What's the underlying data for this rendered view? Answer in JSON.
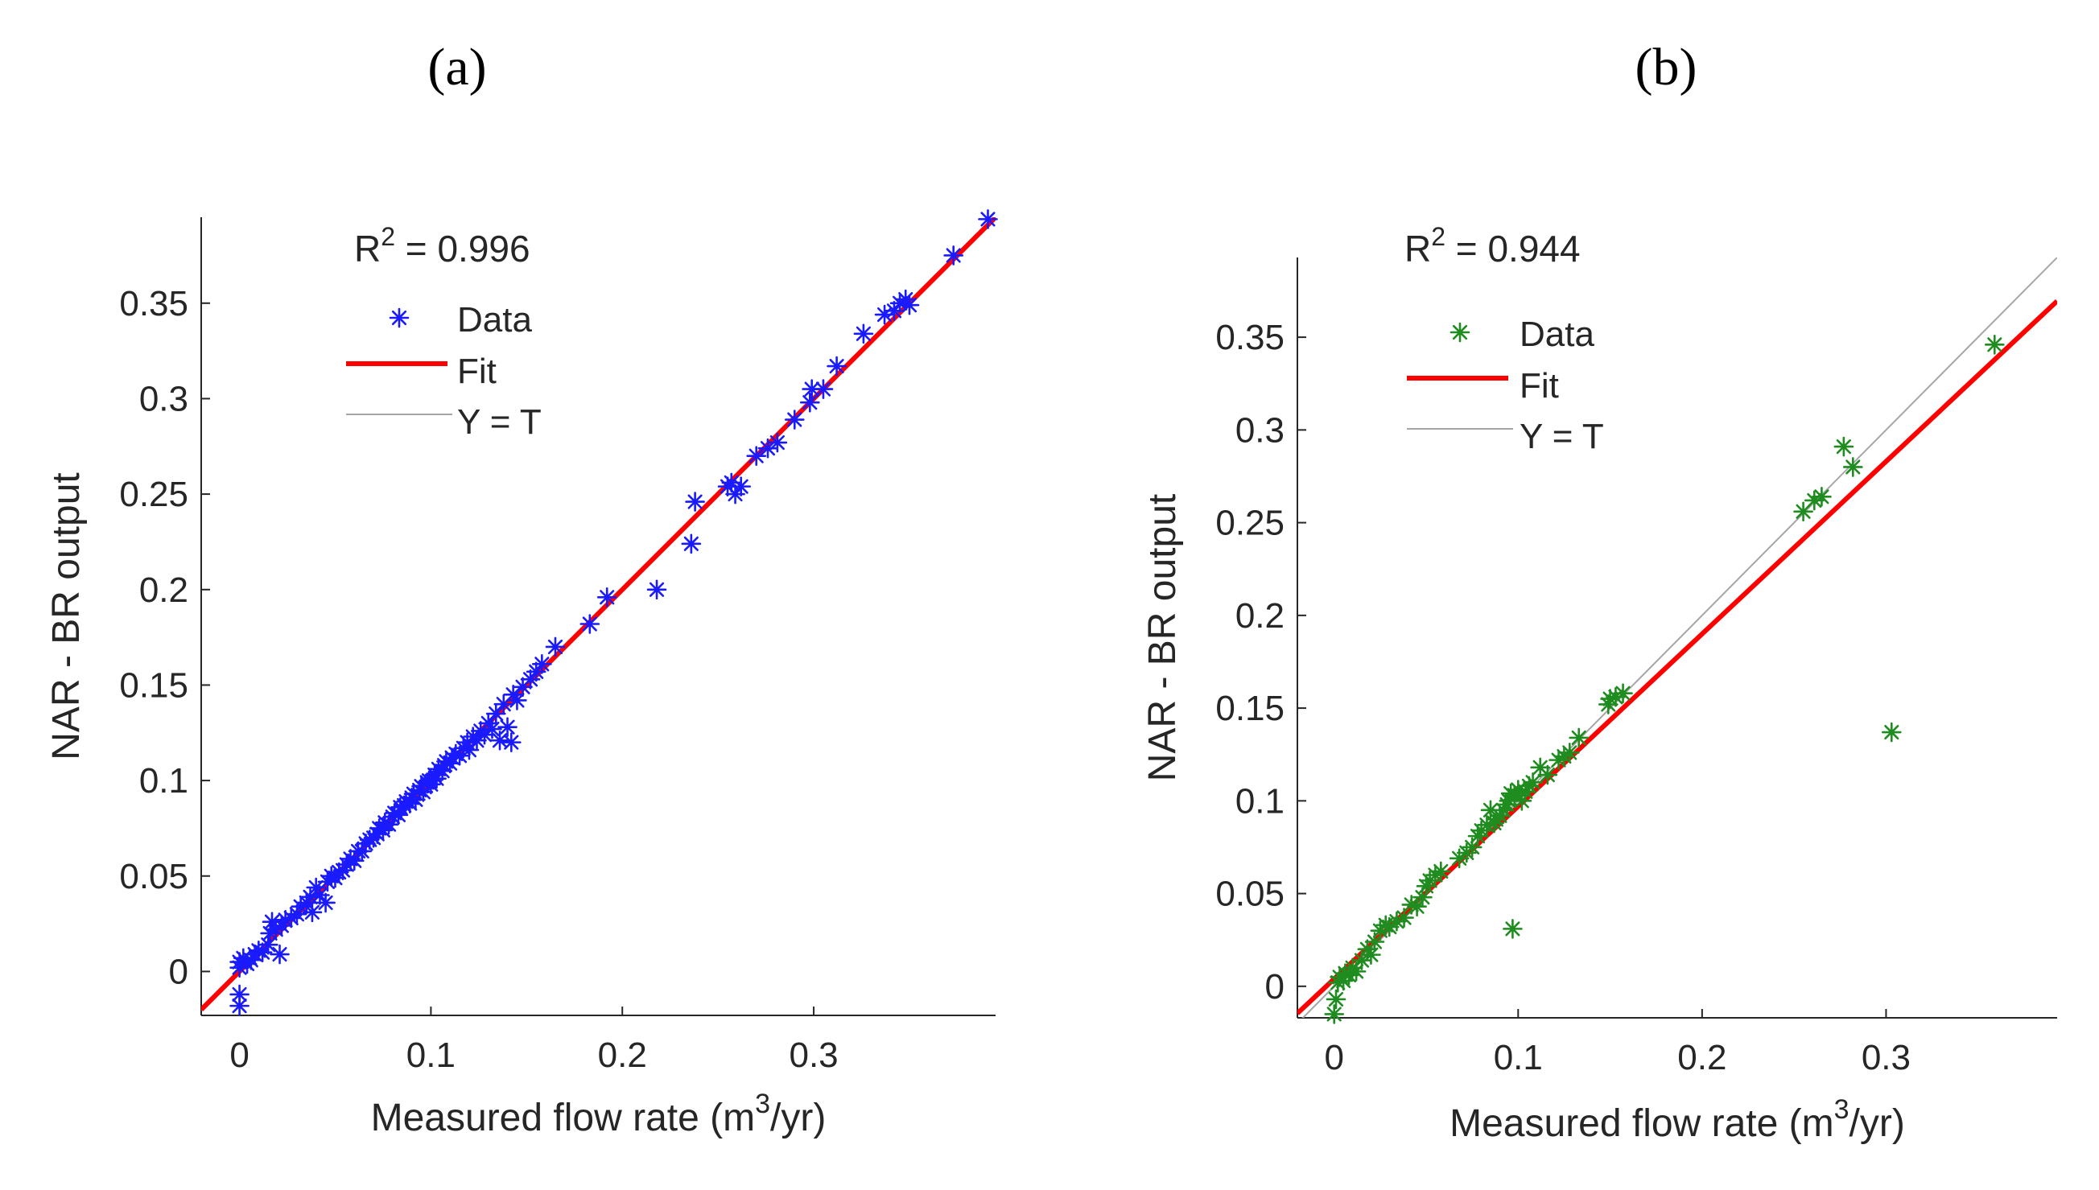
{
  "chart_data": [
    {
      "type": "scatter",
      "panel_label": "(a)",
      "xlabel": "Measured flow rate (m³/yr)",
      "xlabel_parts": {
        "pre": "Measured flow rate (m",
        "sup": "3",
        "post": "/yr)"
      },
      "ylabel": "NAR - BR output",
      "annotation": {
        "prefix": "R",
        "sup": "2",
        "value_text": " = 0.996",
        "r2": 0.996
      },
      "xlim": [
        -0.02,
        0.395
      ],
      "ylim": [
        -0.023,
        0.395
      ],
      "xticks": [
        0,
        0.1,
        0.2,
        0.3
      ],
      "xtick_labels": [
        "0",
        "0.1",
        "0.2",
        "0.3"
      ],
      "yticks": [
        0,
        0.05,
        0.1,
        0.15,
        0.2,
        0.25,
        0.3,
        0.35
      ],
      "ytick_labels": [
        "0",
        "0.05",
        "0.1",
        "0.15",
        "0.2",
        "0.25",
        "0.3",
        "0.35"
      ],
      "grid": false,
      "legend": {
        "placement": "top-left",
        "entries": [
          {
            "label": "Data",
            "kind": "marker",
            "color": "#1a1aff"
          },
          {
            "label": "Fit",
            "kind": "line",
            "color": "#ff0000"
          },
          {
            "label": "Y = T",
            "kind": "line",
            "color": "#a6a6a6"
          }
        ]
      },
      "fit": {
        "slope": 1.0,
        "intercept": 0.0,
        "color": "#ff0000"
      },
      "identity": {
        "color": "#a6a6a6"
      },
      "series": [
        {
          "name": "Data",
          "marker": "asterisk",
          "color": "#1a1aff",
          "points": [
            [
              0,
              -0.018
            ],
            [
              0,
              -0.012
            ],
            [
              0,
              0.002
            ],
            [
              0,
              0.005
            ],
            [
              0.002,
              0.007
            ],
            [
              0.004,
              0.004
            ],
            [
              0.006,
              0.006
            ],
            [
              0.008,
              0.009
            ],
            [
              0.01,
              0.011
            ],
            [
              0.012,
              0.01
            ],
            [
              0.015,
              0.014
            ],
            [
              0.016,
              0.02
            ],
            [
              0.017,
              0.026
            ],
            [
              0.019,
              0.022
            ],
            [
              0.021,
              0.009
            ],
            [
              0.022,
              0.024
            ],
            [
              0.024,
              0.027
            ],
            [
              0.027,
              0.028
            ],
            [
              0.03,
              0.03
            ],
            [
              0.032,
              0.034
            ],
            [
              0.035,
              0.036
            ],
            [
              0.037,
              0.039
            ],
            [
              0.038,
              0.031
            ],
            [
              0.04,
              0.044
            ],
            [
              0.042,
              0.04
            ],
            [
              0.045,
              0.036
            ],
            [
              0.046,
              0.047
            ],
            [
              0.048,
              0.05
            ],
            [
              0.05,
              0.049
            ],
            [
              0.052,
              0.052
            ],
            [
              0.054,
              0.053
            ],
            [
              0.056,
              0.056
            ],
            [
              0.058,
              0.059
            ],
            [
              0.06,
              0.058
            ],
            [
              0.062,
              0.063
            ],
            [
              0.064,
              0.063
            ],
            [
              0.066,
              0.067
            ],
            [
              0.068,
              0.069
            ],
            [
              0.07,
              0.07
            ],
            [
              0.072,
              0.072
            ],
            [
              0.073,
              0.075
            ],
            [
              0.075,
              0.074
            ],
            [
              0.076,
              0.078
            ],
            [
              0.078,
              0.077
            ],
            [
              0.08,
              0.081
            ],
            [
              0.081,
              0.083
            ],
            [
              0.083,
              0.082
            ],
            [
              0.084,
              0.086
            ],
            [
              0.086,
              0.087
            ],
            [
              0.087,
              0.089
            ],
            [
              0.089,
              0.088
            ],
            [
              0.09,
              0.091
            ],
            [
              0.091,
              0.093
            ],
            [
              0.092,
              0.09
            ],
            [
              0.094,
              0.095
            ],
            [
              0.095,
              0.097
            ],
            [
              0.096,
              0.094
            ],
            [
              0.098,
              0.099
            ],
            [
              0.099,
              0.1
            ],
            [
              0.1,
              0.098
            ],
            [
              0.102,
              0.103
            ],
            [
              0.103,
              0.101
            ],
            [
              0.104,
              0.106
            ],
            [
              0.106,
              0.105
            ],
            [
              0.107,
              0.108
            ],
            [
              0.108,
              0.11
            ],
            [
              0.11,
              0.109
            ],
            [
              0.111,
              0.112
            ],
            [
              0.113,
              0.114
            ],
            [
              0.115,
              0.113
            ],
            [
              0.117,
              0.117
            ],
            [
              0.119,
              0.12
            ],
            [
              0.12,
              0.116
            ],
            [
              0.122,
              0.123
            ],
            [
              0.124,
              0.121
            ],
            [
              0.126,
              0.126
            ],
            [
              0.128,
              0.124
            ],
            [
              0.13,
              0.13
            ],
            [
              0.132,
              0.127
            ],
            [
              0.134,
              0.135
            ],
            [
              0.136,
              0.121
            ],
            [
              0.138,
              0.14
            ],
            [
              0.14,
              0.128
            ],
            [
              0.142,
              0.12
            ],
            [
              0.143,
              0.145
            ],
            [
              0.145,
              0.142
            ],
            [
              0.148,
              0.149
            ],
            [
              0.152,
              0.153
            ],
            [
              0.155,
              0.157
            ],
            [
              0.158,
              0.161
            ],
            [
              0.165,
              0.17
            ],
            [
              0.183,
              0.182
            ],
            [
              0.192,
              0.196
            ],
            [
              0.218,
              0.2
            ],
            [
              0.236,
              0.224
            ],
            [
              0.238,
              0.246
            ],
            [
              0.255,
              0.254
            ],
            [
              0.257,
              0.256
            ],
            [
              0.259,
              0.25
            ],
            [
              0.262,
              0.254
            ],
            [
              0.27,
              0.27
            ],
            [
              0.276,
              0.274
            ],
            [
              0.281,
              0.277
            ],
            [
              0.29,
              0.289
            ],
            [
              0.298,
              0.298
            ],
            [
              0.299,
              0.305
            ],
            [
              0.305,
              0.305
            ],
            [
              0.312,
              0.317
            ],
            [
              0.326,
              0.334
            ],
            [
              0.337,
              0.344
            ],
            [
              0.342,
              0.346
            ],
            [
              0.345,
              0.35
            ],
            [
              0.348,
              0.352
            ],
            [
              0.35,
              0.349
            ],
            [
              0.373,
              0.375
            ],
            [
              0.391,
              0.394
            ]
          ]
        }
      ]
    },
    {
      "type": "scatter",
      "panel_label": "(b)",
      "xlabel": "Measured flow rate (m³/yr)",
      "xlabel_parts": {
        "pre": "Measured flow rate (m",
        "sup": "3",
        "post": "/yr)"
      },
      "ylabel": "NAR - BR output",
      "annotation": {
        "prefix": "R",
        "sup": "2",
        "value_text": " = 0.944",
        "r2": 0.944
      },
      "xlim": [
        -0.02,
        0.393
      ],
      "ylim": [
        -0.017,
        0.393
      ],
      "xticks": [
        0,
        0.1,
        0.2,
        0.3
      ],
      "xtick_labels": [
        "0",
        "0.1",
        "0.2",
        "0.3"
      ],
      "yticks": [
        0,
        0.05,
        0.1,
        0.15,
        0.2,
        0.25,
        0.3,
        0.35
      ],
      "ytick_labels": [
        "0",
        "0.05",
        "0.1",
        "0.15",
        "0.2",
        "0.25",
        "0.3",
        "0.35"
      ],
      "grid": false,
      "legend": {
        "placement": "top-left",
        "entries": [
          {
            "label": "Data",
            "kind": "marker",
            "color": "#1e8c1e"
          },
          {
            "label": "Fit",
            "kind": "line",
            "color": "#ff0000"
          },
          {
            "label": "Y = T",
            "kind": "line",
            "color": "#a6a6a6"
          }
        ]
      },
      "fit": {
        "slope": 0.93,
        "intercept": 0.004,
        "color": "#ff0000"
      },
      "identity": {
        "color": "#a6a6a6"
      },
      "series": [
        {
          "name": "Data",
          "marker": "asterisk",
          "color": "#1e8c1e",
          "points": [
            [
              0,
              -0.015
            ],
            [
              0.001,
              -0.007
            ],
            [
              0.002,
              0.002
            ],
            [
              0.003,
              0.005
            ],
            [
              0.005,
              0.003
            ],
            [
              0.006,
              0.007
            ],
            [
              0.008,
              0.006
            ],
            [
              0.01,
              0.01
            ],
            [
              0.012,
              0.008
            ],
            [
              0.015,
              0.014
            ],
            [
              0.018,
              0.02
            ],
            [
              0.02,
              0.017
            ],
            [
              0.022,
              0.024
            ],
            [
              0.025,
              0.03
            ],
            [
              0.028,
              0.033
            ],
            [
              0.03,
              0.032
            ],
            [
              0.034,
              0.035
            ],
            [
              0.038,
              0.037
            ],
            [
              0.042,
              0.044
            ],
            [
              0.045,
              0.043
            ],
            [
              0.048,
              0.048
            ],
            [
              0.05,
              0.054
            ],
            [
              0.052,
              0.057
            ],
            [
              0.055,
              0.06
            ],
            [
              0.058,
              0.062
            ],
            [
              0.068,
              0.069
            ],
            [
              0.072,
              0.072
            ],
            [
              0.075,
              0.075
            ],
            [
              0.078,
              0.081
            ],
            [
              0.08,
              0.084
            ],
            [
              0.083,
              0.087
            ],
            [
              0.085,
              0.095
            ],
            [
              0.087,
              0.088
            ],
            [
              0.088,
              0.09
            ],
            [
              0.09,
              0.092
            ],
            [
              0.092,
              0.095
            ],
            [
              0.094,
              0.098
            ],
            [
              0.095,
              0.1
            ],
            [
              0.096,
              0.104
            ],
            [
              0.097,
              0.031
            ],
            [
              0.098,
              0.103
            ],
            [
              0.1,
              0.106
            ],
            [
              0.102,
              0.1
            ],
            [
              0.104,
              0.105
            ],
            [
              0.106,
              0.108
            ],
            [
              0.108,
              0.11
            ],
            [
              0.112,
              0.118
            ],
            [
              0.116,
              0.114
            ],
            [
              0.122,
              0.122
            ],
            [
              0.125,
              0.124
            ],
            [
              0.128,
              0.126
            ],
            [
              0.133,
              0.134
            ],
            [
              0.149,
              0.152
            ],
            [
              0.15,
              0.155
            ],
            [
              0.153,
              0.156
            ],
            [
              0.157,
              0.158
            ],
            [
              0.255,
              0.256
            ],
            [
              0.261,
              0.262
            ],
            [
              0.265,
              0.264
            ],
            [
              0.277,
              0.291
            ],
            [
              0.282,
              0.28
            ],
            [
              0.303,
              0.137
            ],
            [
              0.359,
              0.346
            ]
          ]
        }
      ]
    }
  ]
}
